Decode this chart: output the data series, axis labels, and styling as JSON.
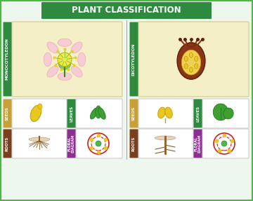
{
  "title": "PLANT CLASSIFICATION",
  "title_bg": "#2d8a3e",
  "title_color": "#ffffff",
  "bg_color": "#ffffff",
  "outer_border_color": "#4db848",
  "outer_bg": "#f5f5f5",
  "monocot_label": "MONOCOTYLEDON",
  "dicot_label": "DICOTYLEDON",
  "label_color_green": "#2d8a3e",
  "label_color_seeds": "#c8a035",
  "label_color_leaves": "#2d8a3e",
  "label_color_roots": "#7b3f1e",
  "label_color_floral": "#7b3f1e",
  "label_color_floral2": "#6a3d8f",
  "cell_bg": "#ffffff",
  "main_cell_bg": "#f5efc8",
  "section_labels": [
    "SEEDS",
    "LEAVES",
    "ROOTS",
    "FLORAL DIAGRAM"
  ]
}
